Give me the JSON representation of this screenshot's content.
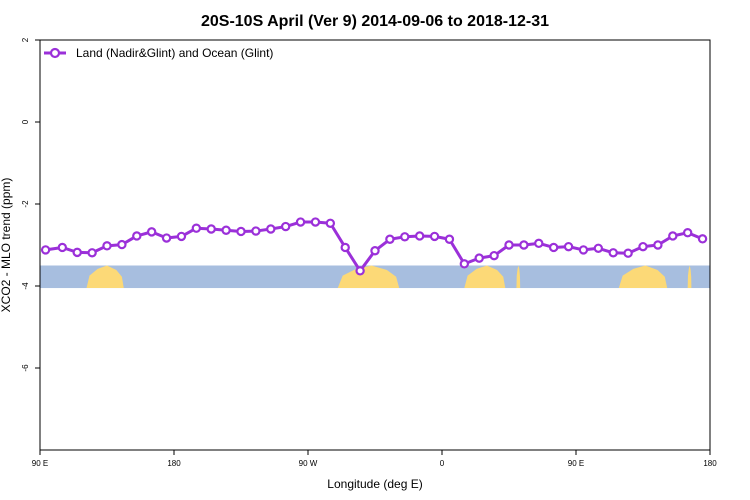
{
  "colors": {
    "series": "#9b30d9",
    "ocean": "#a7bedf",
    "land": "#fcd977",
    "axis": "#000000"
  },
  "chart_data": {
    "type": "line",
    "title": "20S-10S April (Ver 9)   2014-09-06 to 2018-12-31",
    "xlabel": "Longitude (deg E)",
    "ylabel": "XCO2 - MLO trend (ppm)",
    "xlim": [
      90,
      450
    ],
    "ylim": [
      -8,
      2
    ],
    "x_ticks": [
      {
        "value": 90,
        "label": "90 E"
      },
      {
        "value": 162,
        "label": "180"
      },
      {
        "value": 234,
        "label": "90 W"
      },
      {
        "value": 306,
        "label": "0"
      },
      {
        "value": 378,
        "label": "90 E"
      },
      {
        "value": 450,
        "label": "180"
      }
    ],
    "y_ticks": [
      {
        "value": 2,
        "label": "2"
      },
      {
        "value": 0,
        "label": "0"
      },
      {
        "value": -2,
        "label": "-2"
      },
      {
        "value": -4,
        "label": "-4"
      },
      {
        "value": -6,
        "label": "-6"
      }
    ],
    "legend": {
      "position": "top-left"
    },
    "grid": false,
    "series": [
      {
        "name": "Land (Nadir&Glint) and Ocean (Glint)",
        "x": [
          93,
          102,
          110,
          118,
          126,
          134,
          142,
          150,
          158,
          166,
          174,
          182,
          190,
          198,
          206,
          214,
          222,
          230,
          238,
          246,
          254,
          262,
          270,
          278,
          286,
          294,
          302,
          310,
          318,
          326,
          334,
          342,
          350,
          358,
          366,
          374,
          382,
          390,
          398,
          406,
          414,
          422,
          430,
          438,
          446
        ],
        "values": [
          -3.12,
          -3.06,
          -3.18,
          -3.19,
          -3.02,
          -2.99,
          -2.78,
          -2.68,
          -2.83,
          -2.79,
          -2.59,
          -2.61,
          -2.64,
          -2.67,
          -2.66,
          -2.61,
          -2.55,
          -2.44,
          -2.44,
          -2.47,
          -3.06,
          -3.63,
          -3.14,
          -2.86,
          -2.8,
          -2.78,
          -2.79,
          -2.86,
          -3.46,
          -3.32,
          -3.26,
          -3.0,
          -3.0,
          -2.96,
          -3.06,
          -3.04,
          -3.12,
          -3.08,
          -3.19,
          -3.2,
          -3.04,
          -3.0,
          -2.78,
          -2.7,
          -2.85
        ]
      }
    ],
    "band": {
      "ymin": -4.05,
      "ymax": -3.5,
      "land_segments": [
        [
          115,
          135
        ],
        [
          250,
          283
        ],
        [
          318,
          340
        ],
        [
          346,
          348
        ],
        [
          401,
          427
        ],
        [
          438,
          440
        ]
      ]
    }
  }
}
